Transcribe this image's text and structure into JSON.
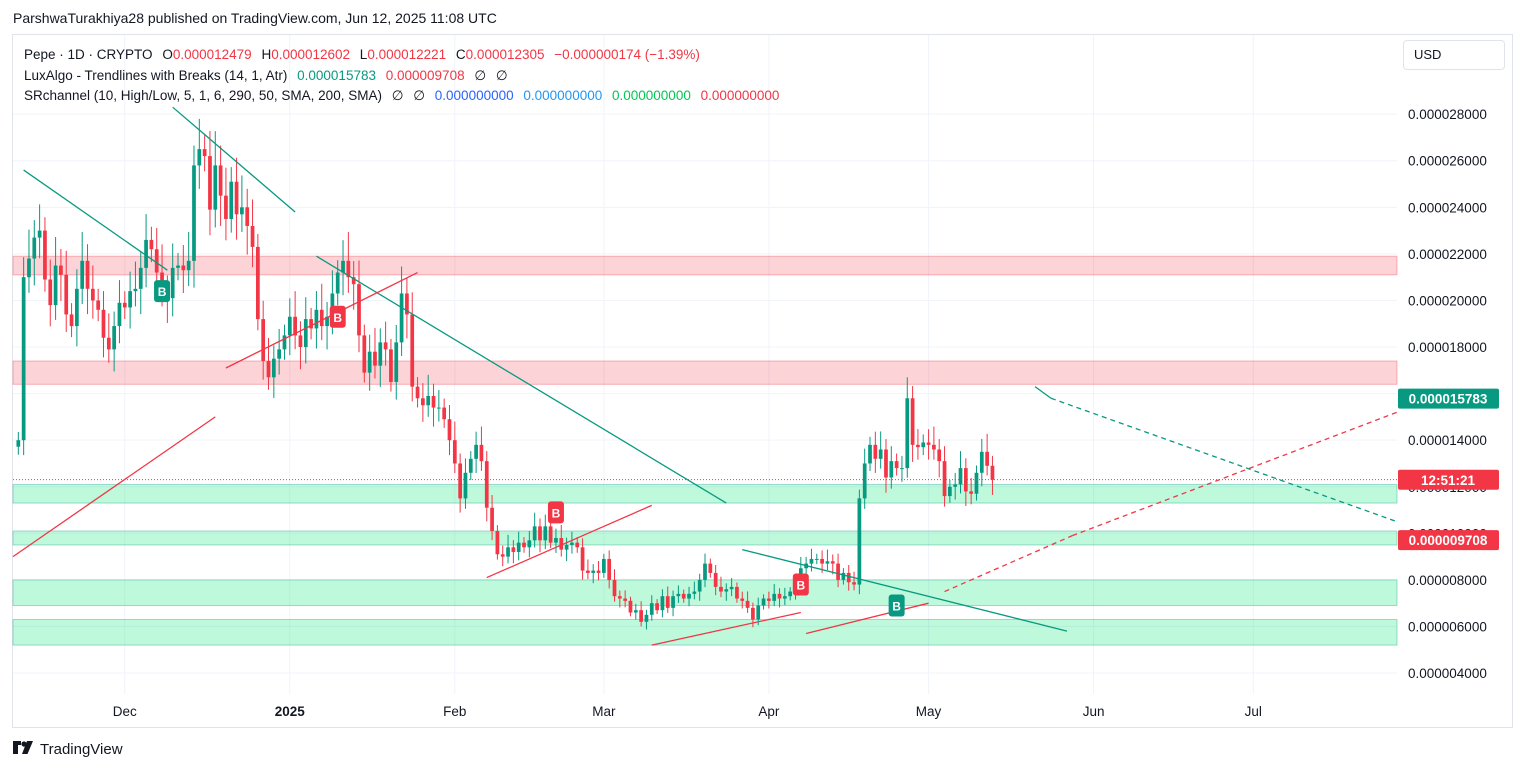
{
  "header": {
    "publisher_line": "ParshwaTurakhiya28 published on TradingView.com, Jun 12, 2025 11:08 UTC"
  },
  "legend": {
    "symbol": {
      "label": "Pepe · 1D · CRYPTO",
      "o_label": "O",
      "o_value": "0.000012479",
      "h_label": "H",
      "h_value": "0.000012602",
      "l_label": "L",
      "l_value": "0.000012221",
      "c_label": "C",
      "c_value": "0.000012305",
      "change": "−0.000000174 (−1.39%)"
    },
    "luxalgo": {
      "label": "LuxAlgo - Trendlines with Breaks (14, 1, Atr)",
      "v1": "0.000015783",
      "v2": "0.000009708",
      "v3": "∅",
      "v4": "∅"
    },
    "srchannel": {
      "label": "SRchannel (10, High/Low, 5, 1, 6, 290, 50, SMA, 200, SMA)",
      "v1": "∅",
      "v2": "∅",
      "v3": "0.000000000",
      "v4": "0.000000000",
      "v5": "0.000000000",
      "v6": "0.000000000"
    }
  },
  "toolbar": {
    "currency": "USD"
  },
  "footer": {
    "brand": "TradingView",
    "logo_icon": "tradingview-logo-icon"
  },
  "colors": {
    "up": "#089981",
    "down": "#f23645",
    "support_zone": "rgba(8,230,120,0.26)",
    "resistance_zone": "rgba(242,54,69,0.22)",
    "blue": "#2962ff"
  },
  "chart_data": {
    "type": "candlestick",
    "symbol": "Pepe",
    "interval": "1D",
    "ylim": [
      3.1e-06,
      3.14e-05
    ],
    "y_ticks": [
      "0.000004000",
      "0.000006000",
      "0.000008000",
      "0.000010000",
      "0.000012000",
      "0.000014000",
      "0.000016000",
      "0.000018000",
      "0.000020000",
      "0.000022000",
      "0.000024000",
      "0.000026000",
      "0.000028000"
    ],
    "x_tick_labels": [
      {
        "label": "Dec",
        "date": "2024-12-01"
      },
      {
        "label": "2025",
        "date": "2025-01-01",
        "bold": true
      },
      {
        "label": "Feb",
        "date": "2025-02-01"
      },
      {
        "label": "Mar",
        "date": "2025-03-01"
      },
      {
        "label": "Apr",
        "date": "2025-04-01"
      },
      {
        "label": "May",
        "date": "2025-05-01"
      },
      {
        "label": "Jun",
        "date": "2025-06-01"
      },
      {
        "label": "Jul",
        "date": "2025-07-01"
      }
    ],
    "xlim": [
      "2024-11-10",
      "2025-07-28"
    ],
    "first_candle_date": "2024-11-11",
    "candles_close": [
      1.4e-05,
      2.1e-05,
      2.18e-05,
      2.27e-05,
      2.3e-05,
      2.09e-05,
      1.98e-05,
      2.15e-05,
      2.11e-05,
      1.94e-05,
      1.89e-05,
      2.05e-05,
      2.17e-05,
      2.05e-05,
      2e-05,
      1.96e-05,
      1.84e-05,
      1.79e-05,
      1.89e-05,
      1.99e-05,
      1.97e-05,
      2.04e-05,
      2.05e-05,
      2.14e-05,
      2.26e-05,
      2.22e-05,
      2.12e-05,
      2.04e-05,
      2.01e-05,
      2.14e-05,
      2.15e-05,
      2.13e-05,
      2.17e-05,
      2.58e-05,
      2.65e-05,
      2.62e-05,
      2.39e-05,
      2.58e-05,
      2.45e-05,
      2.35e-05,
      2.51e-05,
      2.37e-05,
      2.4e-05,
      2.32e-05,
      2.23e-05,
      1.92e-05,
      1.74e-05,
      1.67e-05,
      1.75e-05,
      1.79e-05,
      1.85e-05,
      1.93e-05,
      1.85e-05,
      1.8e-05,
      1.92e-05,
      1.88e-05,
      1.96e-05,
      1.89e-05,
      1.93e-05,
      2.03e-05,
      2.12e-05,
      2.17e-05,
      2.1e-05,
      2.07e-05,
      1.85e-05,
      1.69e-05,
      1.78e-05,
      1.72e-05,
      1.82e-05,
      1.79e-05,
      1.65e-05,
      1.82e-05,
      2.03e-05,
      1.94e-05,
      1.63e-05,
      1.58e-05,
      1.55e-05,
      1.59e-05,
      1.54e-05,
      1.54e-05,
      1.49e-05,
      1.4e-05,
      1.3e-05,
      1.15e-05,
      1.26e-05,
      1.32e-05,
      1.38e-05,
      1.31e-05,
      1.11e-05,
      1.01e-05,
      9.1e-06,
      9e-06,
      9.4e-06,
      9.2e-06,
      9.6e-06,
      9.4e-06,
      9.7e-06,
      1.03e-05,
      9.7e-06,
      1.03e-05,
      9.6e-06,
      9.8e-06,
      9.3e-06,
      9.5e-06,
      9.6e-06,
      9.4e-06,
      8.4e-06,
      8.3e-06,
      8.4e-06,
      8.3e-06,
      8.9e-06,
      8e-06,
      7.3e-06,
      7.2e-06,
      7.1e-06,
      6.6e-06,
      6.7e-06,
      6.2e-06,
      6.5e-06,
      7e-06,
      6.7e-06,
      7.3e-06,
      6.8e-06,
      7.3e-06,
      7.4e-06,
      7.2e-06,
      7.4e-06,
      7.5e-06,
      8e-06,
      8.7e-06,
      8.3e-06,
      7.7e-06,
      7.5e-06,
      7.6e-06,
      7.7e-06,
      7.2e-06,
      7.1e-06,
      6.8e-06,
      6.3e-06,
      6.9e-06,
      7.2e-06,
      7.1e-06,
      7.4e-06,
      7.2e-06,
      7.3e-06,
      7.5e-06,
      7.6e-06,
      8.5e-06,
      8.7e-06,
      8.9e-06,
      8.9e-06,
      8.7e-06,
      8.8e-06,
      8.7e-06,
      8e-06,
      8.3e-06,
      7.9e-06,
      7.8e-06,
      1.15e-05,
      1.3e-05,
      1.38e-05,
      1.32e-05,
      1.36e-05,
      1.24e-05,
      1.31e-05,
      1.28e-05,
      1.28e-05,
      1.58e-05,
      1.38e-05,
      1.37e-05,
      1.39e-05,
      1.38e-05,
      1.36e-05,
      1.31e-05,
      1.16e-05,
      1.2e-05,
      1.21e-05,
      1.28e-05,
      1.18e-05,
      1.17e-05,
      1.26e-05,
      1.35e-05,
      1.29e-05,
      1.23e-05
    ],
    "candles_low_hint": "wicks approximated ~4% beyond body",
    "last_close": "0.000012305",
    "price_labels": [
      {
        "value": "0.000015783",
        "price": 1.5783e-05,
        "color": "#089981"
      },
      {
        "value": "12:51:21",
        "price": 1.23e-05,
        "color": "#f23645"
      },
      {
        "value": "0.000009708",
        "price": 9.708e-06,
        "color": "#f23645"
      }
    ],
    "resistance_zones": [
      [
        2.11e-05,
        2.19e-05
      ],
      [
        1.64e-05,
        1.74e-05
      ]
    ],
    "support_zones": [
      [
        1.13e-05,
        1.21e-05
      ],
      [
        9.5e-06,
        1.01e-05
      ],
      [
        6.9e-06,
        8e-06
      ],
      [
        5.2e-06,
        6.3e-06
      ]
    ],
    "trendlines": [
      {
        "color": "#089981",
        "from": [
          "2024-11-12",
          2.56e-05
        ],
        "to": [
          "2024-12-09",
          2.13e-05
        ]
      },
      {
        "color": "#089981",
        "from": [
          "2024-12-10",
          2.83e-05
        ],
        "to": [
          "2025-01-02",
          2.38e-05
        ]
      },
      {
        "color": "#089981",
        "from": [
          "2025-01-06",
          2.19e-05
        ],
        "to": [
          "2025-03-24",
          1.13e-05
        ]
      },
      {
        "color": "#089981",
        "from": [
          "2025-03-27",
          9.3e-06
        ],
        "to": [
          "2025-05-27",
          5.8e-06
        ]
      },
      {
        "color": "#089981",
        "from": [
          "2025-05-21",
          1.63e-05
        ],
        "to": [
          "2025-05-24",
          1.58e-05
        ]
      },
      {
        "color": "#089981",
        "from": [
          "2025-05-24",
          1.58e-05
        ],
        "to": [
          "2025-07-28",
          1.05e-05
        ],
        "dashed": true
      },
      {
        "color": "#f23645",
        "from": [
          "2024-11-10",
          9e-06
        ],
        "to": [
          "2024-12-18",
          1.5e-05
        ]
      },
      {
        "color": "#f23645",
        "from": [
          "2024-12-20",
          1.71e-05
        ],
        "to": [
          "2025-01-25",
          2.12e-05
        ]
      },
      {
        "color": "#f23645",
        "from": [
          "2025-02-07",
          8.1e-06
        ],
        "to": [
          "2025-03-10",
          1.12e-05
        ]
      },
      {
        "color": "#f23645",
        "from": [
          "2025-03-10",
          5.2e-06
        ],
        "to": [
          "2025-04-07",
          6.6e-06
        ]
      },
      {
        "color": "#f23645",
        "from": [
          "2025-04-08",
          5.7e-06
        ],
        "to": [
          "2025-05-01",
          7e-06
        ]
      },
      {
        "color": "#f23645",
        "from": [
          "2025-05-04",
          7.5e-06
        ],
        "to": [
          "2025-05-28",
          9.9e-06
        ],
        "dashed": true
      },
      {
        "color": "#f23645",
        "from": [
          "2025-05-28",
          9.9e-06
        ],
        "to": [
          "2025-07-28",
          1.52e-05
        ],
        "dashed": true
      }
    ],
    "trendline_extension": "",
    "markers": [
      {
        "label": "B",
        "date": "2024-12-08",
        "price": 2.04e-05,
        "color": "#089981"
      },
      {
        "label": "B",
        "date": "2025-01-10",
        "price": 1.93e-05,
        "color": "#f23645"
      },
      {
        "label": "B",
        "date": "2025-02-20",
        "price": 1.09e-05,
        "color": "#f23645"
      },
      {
        "label": "B",
        "date": "2025-04-07",
        "price": 7.8e-06,
        "color": "#f23645"
      },
      {
        "label": "B",
        "date": "2025-04-25",
        "price": 6.9e-06,
        "color": "#089981"
      }
    ]
  }
}
